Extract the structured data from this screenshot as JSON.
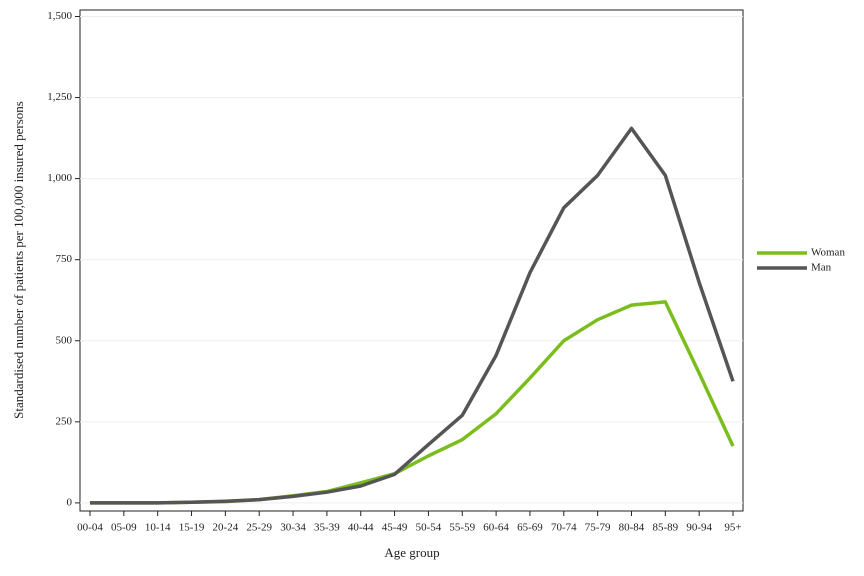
{
  "chart_data": {
    "type": "line",
    "x_label": "Age group",
    "y_label": "Standardised number of patients per 100,000 insured persons",
    "categories": [
      "00-04",
      "05-09",
      "10-14",
      "15-19",
      "20-24",
      "25-29",
      "30-34",
      "35-39",
      "40-44",
      "45-49",
      "50-54",
      "55-59",
      "60-64",
      "65-69",
      "70-74",
      "75-79",
      "80-84",
      "85-89",
      "90-94",
      "95+"
    ],
    "series": [
      {
        "name": "Woman",
        "color": "#7cbd1e",
        "values": [
          0,
          0,
          0,
          2,
          4,
          10,
          22,
          35,
          62,
          90,
          145,
          195,
          275,
          385,
          500,
          565,
          610,
          620,
          400,
          175
        ]
      },
      {
        "name": "Man",
        "color": "#555555",
        "values": [
          0,
          0,
          0,
          2,
          5,
          10,
          20,
          33,
          52,
          88,
          180,
          270,
          455,
          710,
          910,
          1010,
          1155,
          1010,
          680,
          375
        ]
      }
    ],
    "ylim": [
      -25,
      1520
    ],
    "yticks": [
      0,
      250,
      500,
      750,
      {
        "value": 1000,
        "label": "1,000"
      },
      {
        "value": 1250,
        "label": "1,250"
      },
      {
        "value": 1500,
        "label": "1,500"
      }
    ],
    "grid": true,
    "legend": "right"
  }
}
